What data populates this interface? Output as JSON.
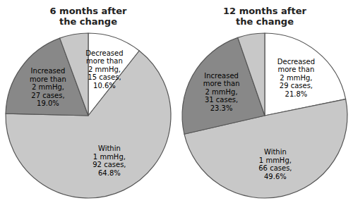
{
  "chart_data": [
    {
      "type": "pie",
      "title": "6 months after\nthe change",
      "values": [
        10.6,
        64.8,
        19.0,
        5.6
      ],
      "value_labels": [
        "Decreased\nmore than\n2 mmHg,\n15 cases,\n10.6%",
        "Within\n1 mmHg,\n92 cases,\n64.8%",
        "Increased\nmore than\n2 mmHg,\n27 cases,\n19.0%",
        null
      ],
      "colors": [
        "#ffffff",
        "#c8c8c8",
        "#888888",
        "#c8c8c8"
      ],
      "data_labels": true
    },
    {
      "type": "pie",
      "title": "12 months after\nthe change",
      "values": [
        21.8,
        49.6,
        23.3,
        5.3
      ],
      "value_labels": [
        "Decreased\nmore than\n2 mmHg,\n29 cases,\n21.8%",
        "Within\n1 mmHg,\n66 cases,\n49.6%",
        "Increased\nmore than\n2 mmHg,\n31 cases,\n23.3%",
        null
      ],
      "colors": [
        "#ffffff",
        "#c8c8c8",
        "#888888",
        "#c8c8c8"
      ],
      "data_labels": true
    }
  ]
}
